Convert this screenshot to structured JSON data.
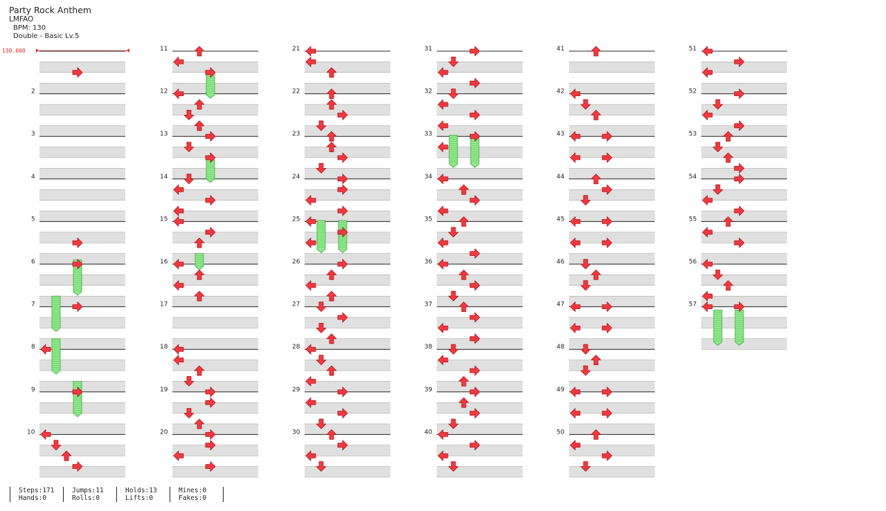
{
  "song": {
    "title": "Party Rock Anthem",
    "artist": "LMFAO",
    "bpm_label": "BPM: 130",
    "chart_label": "Double - Basic Lv.5",
    "bpm_marker": "130.000"
  },
  "measures_per_column": 10,
  "total_measures": 57,
  "colors": {
    "arrow": "#f03a40",
    "arrow_outline": "#b0121a",
    "hold_fill": "#8fe88a",
    "hold_stroke": "#3aa13a",
    "band": "#e0e0e0",
    "line": "#222222"
  },
  "notes": [
    [
      1,
      2,
      "right"
    ],
    [
      5,
      2,
      "right"
    ],
    [
      6,
      0,
      "right"
    ],
    [
      7,
      0,
      "right"
    ],
    [
      8,
      0,
      "left"
    ],
    [
      9,
      0,
      "right"
    ],
    [
      10,
      0,
      "left"
    ],
    [
      10,
      1,
      "down"
    ],
    [
      10,
      2,
      "up"
    ],
    [
      10,
      3,
      "right"
    ],
    [
      11,
      0,
      "up"
    ],
    [
      11,
      1,
      "left"
    ],
    [
      11,
      2,
      "right"
    ],
    [
      12,
      0,
      "left"
    ],
    [
      12,
      1,
      "up"
    ],
    [
      12,
      2,
      "down"
    ],
    [
      12,
      3,
      "up"
    ],
    [
      13,
      0,
      "right"
    ],
    [
      13,
      1,
      "down"
    ],
    [
      13,
      2,
      "right"
    ],
    [
      14,
      0,
      "down"
    ],
    [
      14,
      1,
      "left"
    ],
    [
      14,
      2,
      "right"
    ],
    [
      14,
      3,
      "left"
    ],
    [
      15,
      0,
      "left"
    ],
    [
      15,
      1,
      "right"
    ],
    [
      15,
      2,
      "up"
    ],
    [
      16,
      0,
      "left"
    ],
    [
      16,
      1,
      "up"
    ],
    [
      16,
      2,
      "left"
    ],
    [
      16,
      3,
      "up"
    ],
    [
      18,
      0,
      "left"
    ],
    [
      18,
      1,
      "left"
    ],
    [
      18,
      2,
      "up"
    ],
    [
      18,
      3,
      "down"
    ],
    [
      19,
      0,
      "right"
    ],
    [
      19,
      1,
      "right"
    ],
    [
      19,
      2,
      "down"
    ],
    [
      19,
      3,
      "up"
    ],
    [
      20,
      0,
      "right"
    ],
    [
      20,
      1,
      "right"
    ],
    [
      20,
      2,
      "left"
    ],
    [
      20,
      3,
      "right"
    ],
    [
      21,
      0,
      "left"
    ],
    [
      21,
      1,
      "left"
    ],
    [
      21,
      2,
      "up"
    ],
    [
      22,
      0,
      "up"
    ],
    [
      22,
      1,
      "up"
    ],
    [
      22,
      2,
      "right"
    ],
    [
      22,
      3,
      "down"
    ],
    [
      23,
      0,
      "up"
    ],
    [
      23,
      1,
      "up"
    ],
    [
      23,
      2,
      "right"
    ],
    [
      23,
      3,
      "down"
    ],
    [
      24,
      0,
      "right"
    ],
    [
      24,
      1,
      "right"
    ],
    [
      24,
      2,
      "left"
    ],
    [
      24,
      3,
      "right"
    ],
    [
      25,
      0,
      "left"
    ],
    [
      25,
      1,
      "right"
    ],
    [
      25,
      2,
      "left"
    ],
    [
      26,
      0,
      "right"
    ],
    [
      26,
      1,
      "up"
    ],
    [
      26,
      2,
      "left"
    ],
    [
      26,
      3,
      "up"
    ],
    [
      27,
      0,
      "down"
    ],
    [
      27,
      1,
      "right"
    ],
    [
      27,
      2,
      "down"
    ],
    [
      27,
      3,
      "up"
    ],
    [
      28,
      0,
      "left"
    ],
    [
      28,
      1,
      "down"
    ],
    [
      28,
      2,
      "up"
    ],
    [
      28,
      3,
      "left"
    ],
    [
      29,
      0,
      "right"
    ],
    [
      29,
      1,
      "left"
    ],
    [
      29,
      2,
      "right"
    ],
    [
      29,
      3,
      "down"
    ],
    [
      30,
      0,
      "up"
    ],
    [
      30,
      1,
      "right"
    ],
    [
      30,
      2,
      "left"
    ],
    [
      30,
      3,
      "down"
    ],
    [
      31,
      0,
      "right"
    ],
    [
      31,
      1,
      "down"
    ],
    [
      31,
      2,
      "left"
    ],
    [
      31,
      3,
      "right"
    ],
    [
      32,
      0,
      "down"
    ],
    [
      32,
      1,
      "left"
    ],
    [
      32,
      2,
      "right"
    ],
    [
      32,
      3,
      "left"
    ],
    [
      33,
      0,
      "right"
    ],
    [
      33,
      1,
      "left"
    ],
    [
      34,
      0,
      "left"
    ],
    [
      34,
      1,
      "up"
    ],
    [
      34,
      2,
      "right"
    ],
    [
      34,
      3,
      "left"
    ],
    [
      35,
      0,
      "up"
    ],
    [
      35,
      1,
      "down"
    ],
    [
      35,
      2,
      "left"
    ],
    [
      35,
      3,
      "right"
    ],
    [
      36,
      0,
      "left"
    ],
    [
      36,
      1,
      "up"
    ],
    [
      36,
      2,
      "right"
    ],
    [
      36,
      3,
      "down"
    ],
    [
      37,
      0,
      "up"
    ],
    [
      37,
      1,
      "right"
    ],
    [
      37,
      2,
      "left"
    ],
    [
      37,
      3,
      "right"
    ],
    [
      38,
      0,
      "down"
    ],
    [
      38,
      1,
      "left"
    ],
    [
      38,
      2,
      "right"
    ],
    [
      38,
      3,
      "up"
    ],
    [
      39,
      0,
      "right"
    ],
    [
      39,
      1,
      "up"
    ],
    [
      39,
      2,
      "right"
    ],
    [
      39,
      3,
      "down"
    ],
    [
      40,
      0,
      "left"
    ],
    [
      40,
      1,
      "right"
    ],
    [
      40,
      2,
      "left"
    ],
    [
      40,
      3,
      "down"
    ],
    [
      41,
      0,
      "up"
    ],
    [
      42,
      0,
      "left"
    ],
    [
      42,
      1,
      "down"
    ],
    [
      42,
      2,
      "up"
    ],
    [
      43,
      0,
      "right"
    ],
    [
      43,
      0,
      "left"
    ],
    [
      43,
      2,
      "right"
    ],
    [
      43,
      2,
      "left"
    ],
    [
      44,
      0,
      "up"
    ],
    [
      44,
      1,
      "right"
    ],
    [
      44,
      2,
      "down"
    ],
    [
      45,
      0,
      "right"
    ],
    [
      45,
      0,
      "left"
    ],
    [
      45,
      2,
      "right"
    ],
    [
      45,
      2,
      "left"
    ],
    [
      46,
      0,
      "down"
    ],
    [
      46,
      1,
      "up"
    ],
    [
      46,
      2,
      "down"
    ],
    [
      47,
      0,
      "right"
    ],
    [
      47,
      0,
      "left"
    ],
    [
      47,
      2,
      "right"
    ],
    [
      47,
      2,
      "left"
    ],
    [
      48,
      0,
      "down"
    ],
    [
      48,
      1,
      "up"
    ],
    [
      48,
      2,
      "down"
    ],
    [
      49,
      0,
      "right"
    ],
    [
      49,
      0,
      "left"
    ],
    [
      49,
      2,
      "right"
    ],
    [
      49,
      2,
      "left"
    ],
    [
      50,
      0,
      "up"
    ],
    [
      50,
      1,
      "left"
    ],
    [
      50,
      2,
      "right"
    ],
    [
      50,
      3,
      "down"
    ],
    [
      51,
      0,
      "left"
    ],
    [
      51,
      1,
      "right"
    ],
    [
      51,
      2,
      "left"
    ],
    [
      52,
      0,
      "right"
    ],
    [
      52,
      1,
      "down"
    ],
    [
      52,
      2,
      "left"
    ],
    [
      52,
      3,
      "right"
    ],
    [
      53,
      0,
      "up"
    ],
    [
      53,
      1,
      "down"
    ],
    [
      53,
      2,
      "up"
    ],
    [
      53,
      3,
      "right"
    ],
    [
      54,
      0,
      "right"
    ],
    [
      54,
      1,
      "down"
    ],
    [
      54,
      2,
      "left"
    ],
    [
      54,
      3,
      "right"
    ],
    [
      55,
      0,
      "up"
    ],
    [
      55,
      1,
      "left"
    ],
    [
      55,
      2,
      "right"
    ],
    [
      56,
      0,
      "left"
    ],
    [
      56,
      1,
      "down"
    ],
    [
      56,
      2,
      "up"
    ],
    [
      56,
      3,
      "left"
    ],
    [
      57,
      0,
      "right"
    ],
    [
      57,
      0,
      "left"
    ]
  ],
  "holds": [
    [
      5,
      3.6,
      "right",
      1.0
    ],
    [
      6,
      3.0,
      "left",
      1.0
    ],
    [
      7,
      3.0,
      "left",
      1.0
    ],
    [
      8,
      3.0,
      "right",
      1.0
    ],
    [
      11,
      2.0,
      "right",
      0.7
    ],
    [
      13,
      2.2,
      "right",
      0.6
    ],
    [
      15,
      3.0,
      "up",
      0.4
    ],
    [
      24,
      3.9,
      "right",
      0.9
    ],
    [
      24,
      3.9,
      "left",
      0.9
    ],
    [
      32,
      3.9,
      "right",
      0.9
    ],
    [
      32,
      3.9,
      "left",
      0.9
    ],
    [
      57,
      0.3,
      "right",
      1.0
    ],
    [
      57,
      0.3,
      "left",
      1.0
    ]
  ],
  "stats": [
    {
      "a": "Steps:171",
      "b": "Hands:0"
    },
    {
      "a": "Jumps:11",
      "b": "Rolls:0"
    },
    {
      "a": "Holds:13",
      "b": "Lifts:0"
    },
    {
      "a": "Mines:0",
      "b": "Fakes:0"
    }
  ]
}
